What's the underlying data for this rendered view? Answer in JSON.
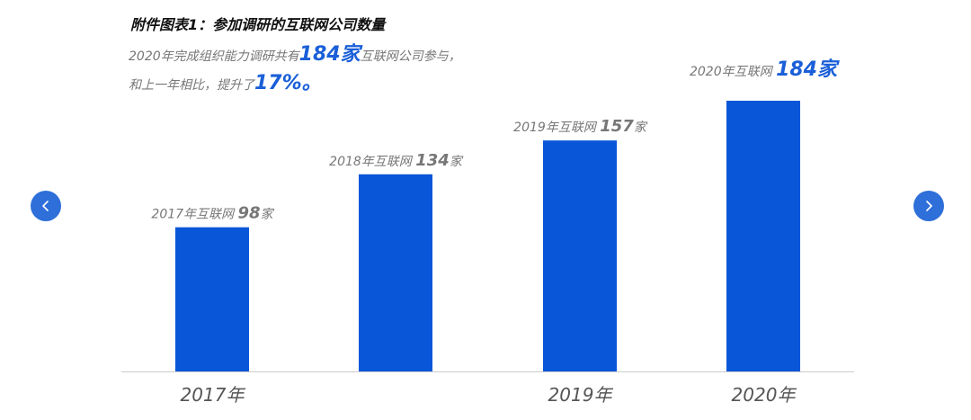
{
  "header": {
    "title": "附件图表1：参加调研的互联网公司数量",
    "summary_line1_pre": "2020年完成组织能力调研共有",
    "summary_line1_highlight": "184家",
    "summary_line1_post": "互联网公司参与，",
    "summary_line2_pre": "和上一年相比，提升了",
    "summary_line2_highlight": "17%。"
  },
  "carousel": {
    "prev_icon": "chevron-left-icon",
    "next_icon": "chevron-right-icon"
  },
  "colors": {
    "bar": "#0a56d8",
    "highlight": "#1a5fd8",
    "label": "#777777",
    "axis_label": "#555555",
    "axis_line": "#cccccc",
    "nav": "#2e6fd9"
  },
  "chart_data": {
    "type": "bar",
    "title": "附件图表1：参加调研的互联网公司数量",
    "categories": [
      "2017年",
      "2018年",
      "2019年",
      "2020年"
    ],
    "tick_labels": [
      "2017年",
      "",
      "2019年",
      "2020年"
    ],
    "values": [
      98,
      134,
      157,
      184
    ],
    "data_labels": [
      {
        "prefix": "2017年互联网 ",
        "value": "98",
        "suffix": "家"
      },
      {
        "prefix": "2018年互联网 ",
        "value": "134",
        "suffix": "家"
      },
      {
        "prefix": "2019年互联网 ",
        "value": "157",
        "suffix": "家"
      },
      {
        "prefix": "2020年互联网 ",
        "value": "184",
        "suffix": "家"
      }
    ],
    "ylim": [
      0,
      184
    ],
    "grid": false,
    "legend": "none"
  }
}
